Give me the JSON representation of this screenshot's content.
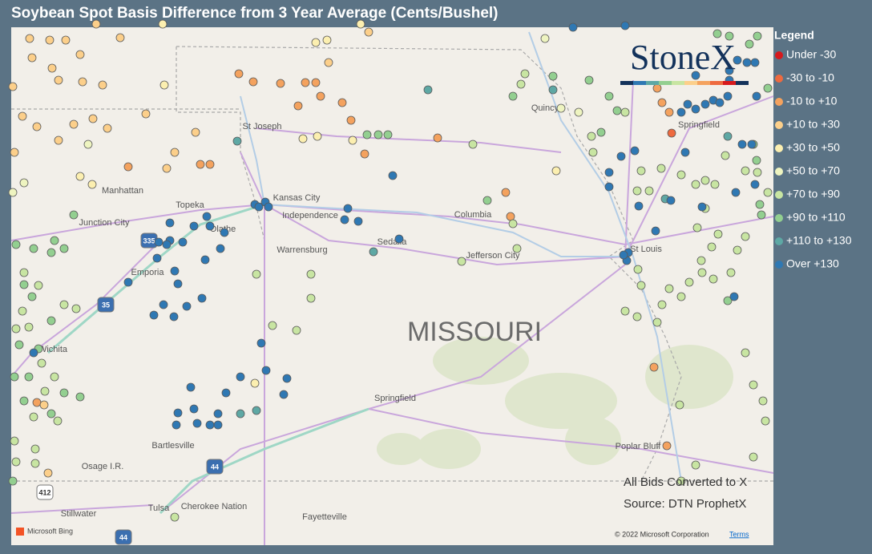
{
  "header": {
    "title": "Soybean Spot Basis Difference from 3 Year Average (Cents/Bushel)"
  },
  "logo": "StoneX",
  "legend": {
    "title": "Legend",
    "items": [
      {
        "label": "Under -30",
        "color": "#d7191c"
      },
      {
        "label": "-30 to -10",
        "color": "#ee6a3f"
      },
      {
        "label": "-10 to +10",
        "color": "#f4a25e"
      },
      {
        "label": "+10 to +30",
        "color": "#fccf8a"
      },
      {
        "label": "+30 to +50",
        "color": "#fcefb0"
      },
      {
        "label": "+50 to +70",
        "color": "#eef4c0"
      },
      {
        "label": "+70 to +90",
        "color": "#c8e5a2"
      },
      {
        "label": "+90 to +110",
        "color": "#93cf90"
      },
      {
        "label": "+110 to +130",
        "color": "#5ea8a4"
      },
      {
        "label": "Over +130",
        "color": "#2f78b3"
      }
    ]
  },
  "state_label": "MISSOURI",
  "map_labels": [
    "St Joseph",
    "Manhattan",
    "Topeka",
    "Kansas City",
    "Independence",
    "Junction City",
    "Olathe",
    "Columbia",
    "Warrensburg",
    "Sedalia",
    "Jefferson City",
    "Emporia",
    "Wichita",
    "St Louis",
    "Springfield",
    "Quincy",
    "Springfield",
    "Bartlesville",
    "Osage I.R.",
    "Poplar Bluff",
    "Tulsa",
    "Cherokee Nation",
    "Stillwater",
    "Fayetteville"
  ],
  "highway_shields": [
    "335",
    "35",
    "44",
    "412",
    "44"
  ],
  "notes": [
    "All Bids Converted to X",
    "Source: DTN ProphetX"
  ],
  "attribution": {
    "bing": "Microsoft Bing",
    "copyright": "© 2022 Microsoft Corporation",
    "terms": "Terms"
  }
}
